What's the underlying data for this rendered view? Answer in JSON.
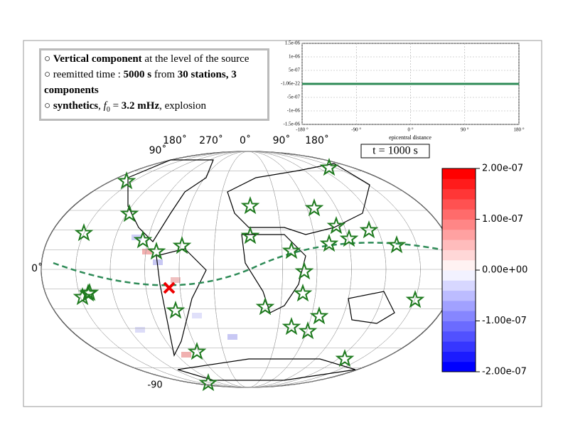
{
  "info_box": {
    "lines": [
      [
        {
          "text": "○ ",
          "style": "normal"
        },
        {
          "text": "Vertical component",
          "style": "bold"
        },
        {
          "text": " at the level of the source",
          "style": "normal"
        }
      ],
      [
        {
          "text": "○ reemitted time : ",
          "style": "normal"
        },
        {
          "text": "5000 s",
          "style": "bold"
        },
        {
          "text": " from ",
          "style": "normal"
        },
        {
          "text": "30 stations, 3 components",
          "style": "bold"
        }
      ],
      [
        {
          "text": "○ ",
          "style": "normal"
        },
        {
          "text": "synthetics",
          "style": "bold"
        },
        {
          "text": ", ",
          "style": "normal"
        },
        {
          "text": "f",
          "style": "italic"
        },
        {
          "text": "0",
          "style": "sub"
        },
        {
          "text": " = ",
          "style": "normal"
        },
        {
          "text": "3.2 mHz",
          "style": "bold"
        },
        {
          "text": ", explosion",
          "style": "normal"
        }
      ]
    ]
  },
  "inset_chart": {
    "type": "line",
    "x_label": "epicentral distance",
    "xlim": [
      -180,
      180
    ],
    "xticks": [
      {
        "value": -180,
        "label": "-180 °"
      },
      {
        "value": -90,
        "label": "-90 °"
      },
      {
        "value": 0,
        "label": "0 °"
      },
      {
        "value": 90,
        "label": "90 °"
      },
      {
        "value": 180,
        "label": "180 °"
      }
    ],
    "ylim": [
      -1.5e-06,
      1.5e-06
    ],
    "yticks": [
      {
        "value": 1.5e-06,
        "label": "1.5e-06"
      },
      {
        "value": 1e-06,
        "label": "1e-06"
      },
      {
        "value": 5e-07,
        "label": "5e-07"
      },
      {
        "value": -1.06e-22,
        "label": "-1.06e-22"
      },
      {
        "value": -5e-07,
        "label": "-5e-07"
      },
      {
        "value": -1e-06,
        "label": "-1e-06"
      },
      {
        "value": -1.5e-06,
        "label": "-1.5e-06"
      }
    ],
    "grid": true,
    "x": [
      -180,
      -90,
      0,
      90,
      180
    ],
    "values": [
      0,
      0,
      0,
      0,
      0
    ],
    "color": "#2e8b57"
  },
  "time_label": "t = 1000 s",
  "map": {
    "top_labels": [
      "180˚",
      "270˚",
      "0˚",
      "90˚",
      "180˚"
    ],
    "left_labels": [
      "90˚",
      "0˚"
    ],
    "bottom_label": "-90"
  },
  "colorbar": {
    "ylim": [
      -2e-07,
      2e-07
    ],
    "ticks": [
      {
        "value": 2e-07,
        "label": "2.00e-07"
      },
      {
        "value": 1e-07,
        "label": "1.00e-07"
      },
      {
        "value": 0,
        "label": "0.00e+00"
      },
      {
        "value": -1e-07,
        "label": "-1.00e-07"
      },
      {
        "value": -2e-07,
        "label": "-2.00e-07"
      }
    ]
  }
}
